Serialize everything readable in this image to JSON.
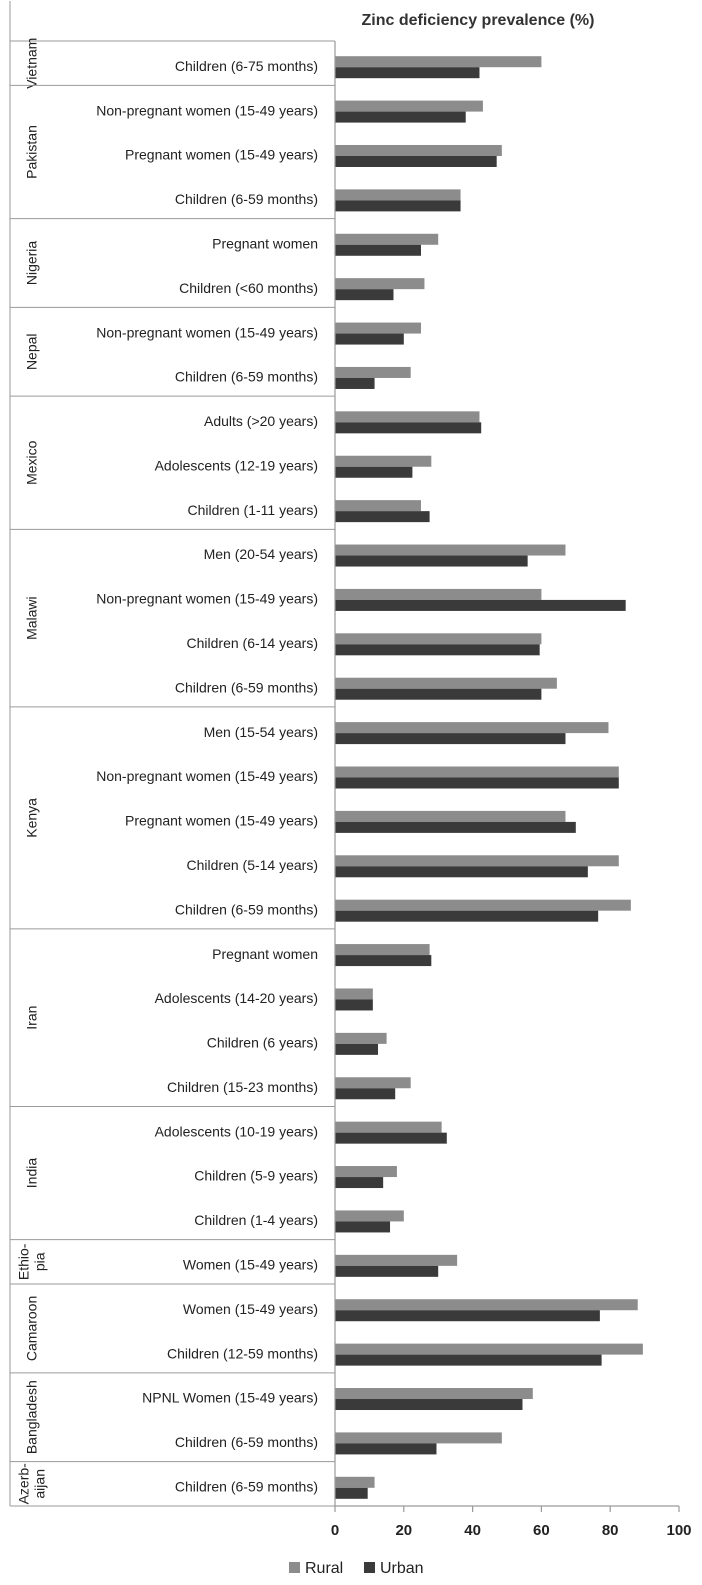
{
  "chart_data": {
    "type": "bar",
    "orientation": "horizontal",
    "title": "Zinc deficiency prevalence (%)",
    "xlim": [
      0,
      100
    ],
    "xticks": [
      0,
      20,
      40,
      60,
      80,
      100
    ],
    "grid": false,
    "legend_position": "bottom",
    "series": [
      {
        "name": "Rural",
        "color": "#8c8c8c"
      },
      {
        "name": "Urban",
        "color": "#3a3a3a"
      }
    ],
    "groups": [
      {
        "country": "Vietnam",
        "country_lines": [
          "Vietnam"
        ],
        "items": [
          {
            "label": "Children (6-75 months)",
            "rural": 60,
            "urban": 42
          }
        ]
      },
      {
        "country": "Pakistan",
        "country_lines": [
          "Pakistan"
        ],
        "items": [
          {
            "label": "Non-pregnant women  (15-49 years)",
            "rural": 43,
            "urban": 38
          },
          {
            "label": "Pregnant women (15-49 years)",
            "rural": 48.5,
            "urban": 47
          },
          {
            "label": "Children (6-59 months)",
            "rural": 36.5,
            "urban": 36.5
          }
        ]
      },
      {
        "country": "Nigeria",
        "country_lines": [
          "Nigeria"
        ],
        "items": [
          {
            "label": "Pregnant women",
            "rural": 30,
            "urban": 25
          },
          {
            "label": "Children (<60 months)",
            "rural": 26,
            "urban": 17
          }
        ]
      },
      {
        "country": "Nepal",
        "country_lines": [
          "Nepal"
        ],
        "items": [
          {
            "label": "Non-pregnant women  (15-49 years)",
            "rural": 25,
            "urban": 20
          },
          {
            "label": "Children (6-59 months)",
            "rural": 22,
            "urban": 11.5
          }
        ]
      },
      {
        "country": "Mexico",
        "country_lines": [
          "Mexico"
        ],
        "items": [
          {
            "label": "Adults (>20 years)",
            "rural": 42,
            "urban": 42.5
          },
          {
            "label": "Adolescents (12-19 years)",
            "rural": 28,
            "urban": 22.5
          },
          {
            "label": "Children (1-11 years)",
            "rural": 25,
            "urban": 27.5
          }
        ]
      },
      {
        "country": "Malawi",
        "country_lines": [
          "Malawi"
        ],
        "items": [
          {
            "label": "Men (20-54 years)",
            "rural": 67,
            "urban": 56
          },
          {
            "label": "Non-pregnant women (15-49 years)",
            "rural": 60,
            "urban": 84.5
          },
          {
            "label": "Children (6-14 years)",
            "rural": 60,
            "urban": 59.5
          },
          {
            "label": "Children (6-59 months)",
            "rural": 64.5,
            "urban": 60
          }
        ]
      },
      {
        "country": "Kenya",
        "country_lines": [
          "Kenya"
        ],
        "items": [
          {
            "label": "Men (15-54 years)",
            "rural": 79.5,
            "urban": 67
          },
          {
            "label": "Non-pregnant women (15-49 years)",
            "rural": 82.5,
            "urban": 82.5
          },
          {
            "label": "Pregnant women (15-49 years)",
            "rural": 67,
            "urban": 70
          },
          {
            "label": "Children  (5-14 years)",
            "rural": 82.5,
            "urban": 73.5
          },
          {
            "label": "Children  (6-59 months)",
            "rural": 86,
            "urban": 76.5
          }
        ]
      },
      {
        "country": "Iran",
        "country_lines": [
          "Iran"
        ],
        "items": [
          {
            "label": "Pregnant women",
            "rural": 27.5,
            "urban": 28
          },
          {
            "label": "Adolescents (14-20 years)",
            "rural": 11,
            "urban": 11
          },
          {
            "label": "Children (6 years)",
            "rural": 15,
            "urban": 12.5
          },
          {
            "label": "Children (15-23 months)",
            "rural": 22,
            "urban": 17.5
          }
        ]
      },
      {
        "country": "India",
        "country_lines": [
          "India"
        ],
        "items": [
          {
            "label": "Adolescents (10-19 years)",
            "rural": 31,
            "urban": 32.5
          },
          {
            "label": "Children (5-9 years)",
            "rural": 18,
            "urban": 14
          },
          {
            "label": "Children (1-4 years)",
            "rural": 20,
            "urban": 16
          }
        ]
      },
      {
        "country": "Ethiopia",
        "country_lines": [
          "Ethio-",
          "pia"
        ],
        "items": [
          {
            "label": "Women (15-49 years)",
            "rural": 35.5,
            "urban": 30
          }
        ]
      },
      {
        "country": "Camaroon",
        "country_lines": [
          "Camaroon"
        ],
        "items": [
          {
            "label": "Women (15-49 years)",
            "rural": 88,
            "urban": 77
          },
          {
            "label": "Children (12-59 months)",
            "rural": 89.5,
            "urban": 77.5
          }
        ]
      },
      {
        "country": "Bangladesh",
        "country_lines": [
          "Bangladesh"
        ],
        "items": [
          {
            "label": "NPNL Women (15-49 years)",
            "rural": 57.5,
            "urban": 54.5
          },
          {
            "label": "Children (6-59 months)",
            "rural": 48.5,
            "urban": 29.5
          }
        ]
      },
      {
        "country": "Azerbaijan",
        "country_lines": [
          "Azerb-",
          "aijan"
        ],
        "items": [
          {
            "label": "Children (6-59 months)",
            "rural": 11.5,
            "urban": 9.5
          }
        ]
      }
    ]
  }
}
